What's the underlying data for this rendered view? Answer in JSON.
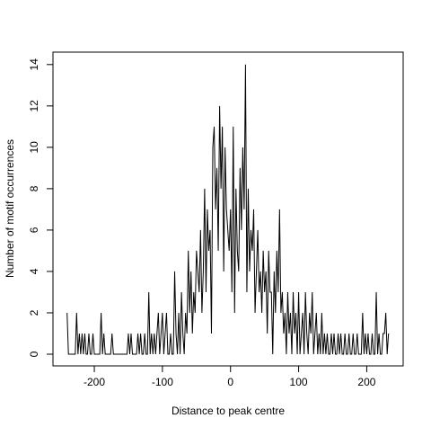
{
  "chart_data": {
    "type": "line",
    "x_label": "Distance to peak centre",
    "y_label": "Number of motif occurrences",
    "color": "#000000",
    "x": [
      -240,
      -238,
      -236,
      -234,
      -232,
      -230,
      -228,
      -226,
      -224,
      -222,
      -220,
      -218,
      -216,
      -214,
      -212,
      -210,
      -208,
      -206,
      -204,
      -202,
      -200,
      -198,
      -196,
      -194,
      -192,
      -190,
      -188,
      -186,
      -184,
      -182,
      -180,
      -178,
      -176,
      -174,
      -172,
      -170,
      -168,
      -166,
      -164,
      -162,
      -160,
      -158,
      -156,
      -154,
      -152,
      -150,
      -148,
      -146,
      -144,
      -142,
      -140,
      -138,
      -136,
      -134,
      -132,
      -130,
      -128,
      -126,
      -124,
      -122,
      -120,
      -118,
      -116,
      -114,
      -112,
      -110,
      -108,
      -106,
      -104,
      -102,
      -100,
      -98,
      -96,
      -94,
      -92,
      -90,
      -88,
      -86,
      -84,
      -82,
      -80,
      -78,
      -76,
      -74,
      -72,
      -70,
      -68,
      -66,
      -64,
      -62,
      -60,
      -58,
      -56,
      -54,
      -52,
      -50,
      -48,
      -46,
      -44,
      -42,
      -40,
      -38,
      -36,
      -34,
      -32,
      -30,
      -28,
      -26,
      -24,
      -22,
      -20,
      -18,
      -16,
      -14,
      -12,
      -10,
      -8,
      -6,
      -4,
      -2,
      0,
      2,
      4,
      6,
      8,
      10,
      12,
      14,
      16,
      18,
      20,
      22,
      24,
      26,
      28,
      30,
      32,
      34,
      36,
      38,
      40,
      42,
      44,
      46,
      48,
      50,
      52,
      54,
      56,
      58,
      60,
      62,
      64,
      66,
      68,
      70,
      72,
      74,
      76,
      78,
      80,
      82,
      84,
      86,
      88,
      90,
      92,
      94,
      96,
      98,
      100,
      102,
      104,
      106,
      108,
      110,
      112,
      114,
      116,
      118,
      120,
      122,
      124,
      126,
      128,
      130,
      132,
      134,
      136,
      138,
      140,
      142,
      144,
      146,
      148,
      150,
      152,
      154,
      156,
      158,
      160,
      162,
      164,
      166,
      168,
      170,
      172,
      174,
      176,
      178,
      180,
      182,
      184,
      186,
      188,
      190,
      192,
      194,
      196,
      198,
      200,
      202,
      204,
      206,
      208,
      210,
      212,
      214,
      216,
      218,
      220,
      222,
      224,
      226,
      228,
      230,
      232
    ],
    "values": [
      2,
      0,
      0,
      0,
      0,
      0,
      0,
      2,
      0,
      1,
      0,
      1,
      0,
      1,
      0,
      0,
      1,
      0,
      0,
      1,
      0,
      0,
      0,
      0,
      0,
      2,
      0,
      1,
      0,
      0,
      0,
      0,
      0,
      1,
      0,
      0,
      0,
      0,
      0,
      0,
      0,
      0,
      0,
      0,
      0,
      1,
      0,
      1,
      0,
      0,
      0,
      0,
      1,
      0,
      1,
      0,
      0,
      1,
      0,
      0,
      3,
      0,
      1,
      0,
      1,
      0,
      1,
      2,
      0,
      1,
      2,
      0,
      1,
      2,
      0,
      0,
      1,
      0,
      0,
      4,
      1,
      0,
      2,
      0,
      3,
      1,
      0,
      2,
      1,
      5,
      2,
      4,
      1,
      3,
      2,
      5,
      4,
      3,
      6,
      2,
      4,
      8,
      3,
      7,
      5,
      6,
      1,
      10,
      11,
      7,
      9,
      5,
      12,
      8,
      11,
      4,
      10,
      7,
      6,
      5,
      7,
      3,
      11,
      2,
      8,
      5,
      4,
      9,
      6,
      10,
      7,
      14,
      3,
      8,
      4,
      6,
      5,
      7,
      2,
      4,
      6,
      3,
      4,
      2,
      5,
      3,
      4,
      1,
      5,
      3,
      3,
      0,
      4,
      2,
      5,
      3,
      7,
      2,
      3,
      1,
      2,
      0,
      3,
      1,
      2,
      0,
      3,
      1,
      2,
      0,
      3,
      0,
      1,
      2,
      0,
      3,
      1,
      0,
      2,
      1,
      3,
      0,
      1,
      2,
      0,
      1,
      0,
      2,
      0,
      1,
      0,
      1,
      0,
      0,
      1,
      0,
      1,
      0,
      0,
      1,
      0,
      1,
      0,
      0,
      1,
      0,
      0,
      1,
      0,
      0,
      1,
      0,
      0,
      1,
      0,
      0,
      0,
      2,
      0,
      1,
      0,
      1,
      0,
      0,
      1,
      0,
      0,
      3,
      0,
      1,
      0,
      0,
      1,
      1,
      2,
      0,
      1
    ],
    "xlim": [
      -260.7,
      253.5
    ],
    "xticks": [
      -200,
      -100,
      0,
      100,
      200
    ],
    "ylim": [
      -0.565,
      14.6
    ],
    "yticks": [
      0,
      2,
      4,
      6,
      8,
      10,
      12,
      14
    ]
  }
}
